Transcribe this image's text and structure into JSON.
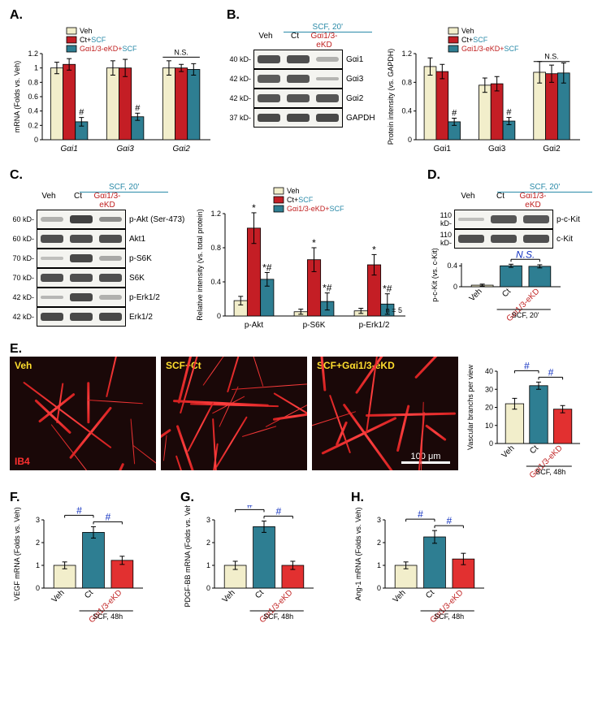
{
  "colors": {
    "veh": "#f2eecb",
    "ct_scf": "#c41e25",
    "kd_scf": "#2e7e92",
    "ct_bar_FGH": "#2e7e92",
    "kd_bar_FGH": "#e23030",
    "blue_text": "#2a8aa8",
    "red_text": "#c02020",
    "hash_blue": "#1030c0"
  },
  "legend_labels": {
    "veh": "Veh",
    "ct": "Ct+",
    "ct_suffix": "SCF",
    "kd": "Gαi1/3-eKD+",
    "kd_suffix": "SCF"
  },
  "A": {
    "label": "A.",
    "ylab": "mRNA (Folds vs. Veh)",
    "ylim": [
      0,
      1.2
    ],
    "ytick_step": 0.2,
    "categories": [
      "Gαi1",
      "Gαi3",
      "Gαi2"
    ],
    "veh": [
      1.0,
      1.0,
      1.0
    ],
    "ct": [
      1.05,
      1.0,
      1.0
    ],
    "kd": [
      0.25,
      0.32,
      0.98
    ],
    "err_veh": [
      0.08,
      0.1,
      0.1
    ],
    "err_ct": [
      0.08,
      0.12,
      0.05
    ],
    "err_kd": [
      0.06,
      0.05,
      0.08
    ],
    "hash_on_kd": [
      true,
      true,
      false
    ],
    "ns_group": 2,
    "ns_text": "N.S."
  },
  "B": {
    "label": "B.",
    "lane_headers": [
      "Veh",
      "Ct",
      "Gαi1/3-eKD"
    ],
    "scf_header": "SCF, 20'",
    "rows": [
      {
        "mw": "40 kD-",
        "label": "Gαi1",
        "intensity": [
          0.85,
          0.85,
          0.15
        ]
      },
      {
        "mw": "42 kD-",
        "label": "Gαi3",
        "intensity": [
          0.75,
          0.8,
          0.12
        ]
      },
      {
        "mw": "42 kD-",
        "label": "Gαi2",
        "intensity": [
          0.8,
          0.8,
          0.8
        ]
      },
      {
        "mw": "37 kD-",
        "label": "GAPDH",
        "intensity": [
          0.9,
          0.9,
          0.9
        ]
      }
    ],
    "chart": {
      "ylab": "Protein intensity (vs. GAPDH)",
      "ylim": [
        0,
        1.2
      ],
      "ytick_step": 0.4,
      "categories": [
        "Gαi1",
        "Gαi3",
        "Gαi2"
      ],
      "veh": [
        1.02,
        0.76,
        0.94
      ],
      "ct": [
        0.95,
        0.78,
        0.92
      ],
      "kd": [
        0.25,
        0.26,
        0.93
      ],
      "err_veh": [
        0.12,
        0.1,
        0.15
      ],
      "err_ct": [
        0.1,
        0.1,
        0.12
      ],
      "err_kd": [
        0.05,
        0.05,
        0.14
      ],
      "hash_on_kd": [
        true,
        true,
        false
      ],
      "ns_group": 2,
      "ns_text": "N.S."
    }
  },
  "C": {
    "label": "C.",
    "lane_headers": [
      "Veh",
      "Ct",
      "Gαi1/3-eKD"
    ],
    "scf_header": "SCF, 20'",
    "rows": [
      {
        "mw": "60 kD-",
        "label": "p-Akt (Ser-473)",
        "intensity": [
          0.15,
          0.95,
          0.4
        ]
      },
      {
        "mw": "60 kD-",
        "label": "Akt1",
        "intensity": [
          0.85,
          0.85,
          0.85
        ]
      },
      {
        "mw": "70 kD-",
        "label": "p-S6K",
        "intensity": [
          0.05,
          0.9,
          0.2
        ]
      },
      {
        "mw": "70 kD-",
        "label": "S6K",
        "intensity": [
          0.85,
          0.85,
          0.85
        ]
      },
      {
        "mw": "42 kD-",
        "label": "p-Erk1/2",
        "intensity": [
          0.1,
          0.9,
          0.15
        ]
      },
      {
        "mw": "42 kD-",
        "label": "Erk1/2",
        "intensity": [
          0.9,
          0.9,
          0.9
        ]
      }
    ],
    "chart": {
      "ylab": "Relative intensity (vs. total protein)",
      "ylim": [
        0,
        1.2
      ],
      "ytick_step": 0.4,
      "categories": [
        "p-Akt",
        "p-S6K",
        "p-Erk1/2"
      ],
      "veh": [
        0.18,
        0.05,
        0.06
      ],
      "ct": [
        1.03,
        0.66,
        0.6
      ],
      "kd": [
        0.43,
        0.17,
        0.14
      ],
      "err_veh": [
        0.05,
        0.03,
        0.03
      ],
      "err_ct": [
        0.18,
        0.14,
        0.12
      ],
      "err_kd": [
        0.08,
        0.1,
        0.12
      ],
      "star_ct": [
        true,
        true,
        true
      ],
      "starhash_kd": [
        true,
        true,
        true
      ],
      "n_text": "n = 5"
    }
  },
  "D": {
    "label": "D.",
    "lane_headers": [
      "Veh",
      "Ct",
      "Gαi1/3-eKD"
    ],
    "scf_header": "SCF, 20'",
    "rows": [
      {
        "mw": "110 kD-",
        "label": "p-c-Kit",
        "intensity": [
          0.05,
          0.8,
          0.78
        ]
      },
      {
        "mw": "110 kD-",
        "label": "c-Kit",
        "intensity": [
          0.85,
          0.85,
          0.85
        ]
      }
    ],
    "chart": {
      "ylab": "p-c-Kit (vs. c-Kit)",
      "ylim": [
        0,
        0.45
      ],
      "yticks": [
        0,
        0.4
      ],
      "veh": 0.03,
      "errv": 0.02,
      "ct": 0.4,
      "errc": 0.03,
      "kd": 0.39,
      "errk": 0.03,
      "ns": "N.S.",
      "xunder": "SCF, 20'"
    }
  },
  "E": {
    "label": "E.",
    "panels": [
      "Veh",
      "SCF+Ct",
      "SCF+Gαi1/3-eKD"
    ],
    "corner": "IB4",
    "scale": "100 μm",
    "chart": {
      "ylab": "Vascular branchs per view",
      "ylim": [
        0,
        40
      ],
      "ytick_step": 10,
      "veh": 22,
      "errv": 3,
      "ct": 32,
      "errc": 2,
      "kd": 19,
      "errk": 2,
      "xunder": "SCF, 48h",
      "xlabels": [
        "Veh",
        "Ct",
        "Gαi1/3-eKD"
      ]
    }
  },
  "FGH_common": {
    "xlabels": [
      "Veh",
      "Ct",
      "Gαi1/3-eKD"
    ],
    "xunder": "SCF, 48h",
    "ylim": [
      0,
      3
    ],
    "ytick_step": 1
  },
  "F": {
    "label": "F.",
    "ylab": "VEGF mRNA\n(Folds vs. Veh)",
    "veh": 1.0,
    "ct": 2.45,
    "kd": 1.22,
    "errv": 0.15,
    "errc": 0.25,
    "errk": 0.18
  },
  "G": {
    "label": "G.",
    "ylab": "PDGF-BB mRNA\n(Folds vs. Veh)",
    "veh": 1.0,
    "ct": 2.7,
    "kd": 1.0,
    "errv": 0.18,
    "errc": 0.25,
    "errk": 0.18
  },
  "H": {
    "label": "H.",
    "ylab": "Ang-1 mRNA\n(Folds vs. Veh)",
    "veh": 1.0,
    "ct": 2.25,
    "kd": 1.28,
    "errv": 0.15,
    "errc": 0.28,
    "errk": 0.25
  }
}
